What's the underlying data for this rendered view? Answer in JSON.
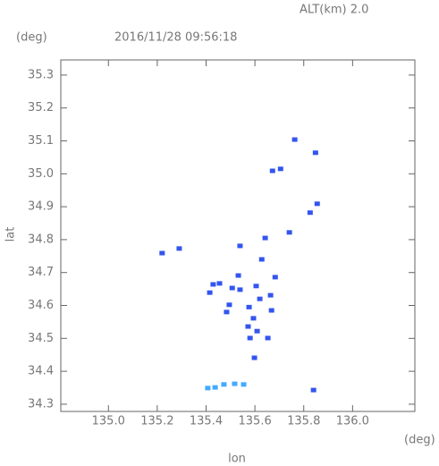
{
  "chart_data": {
    "type": "scatter",
    "title": "2016/11/28 09:56:18",
    "annotation": "ALT(km) 2.0",
    "y_unit": "(deg)",
    "x_unit": "(deg)",
    "x_label": "lon",
    "y_label": "lat",
    "xlim": [
      134.805,
      136.255
    ],
    "ylim": [
      34.278,
      35.346
    ],
    "xticks": [
      {
        "value": 135,
        "label": "135.0"
      },
      135.2,
      135.4,
      135.6,
      135.8,
      {
        "value": 136,
        "label": "136.0"
      }
    ],
    "yticks": [
      34.3,
      34.4,
      34.5,
      34.6,
      34.7,
      34.8,
      34.9,
      {
        "value": 35,
        "label": "35.0"
      },
      35.1,
      35.2,
      35.3
    ],
    "series": [
      {
        "color": "#3355ee",
        "x": [
          135.763,
          135.848,
          135.672,
          135.705,
          135.826,
          135.855,
          135.642,
          135.741,
          135.22,
          135.29,
          135.539,
          135.628,
          135.683,
          135.532,
          135.429,
          135.455,
          135.415,
          135.507,
          135.539,
          135.605,
          135.664,
          135.62,
          135.576,
          135.668,
          135.484,
          135.495,
          135.594,
          135.572,
          135.609,
          135.58,
          135.653,
          135.598,
          135.84
        ],
        "values": [
          35.104,
          35.064,
          35.009,
          35.015,
          34.882,
          34.909,
          34.805,
          34.822,
          34.759,
          34.773,
          34.781,
          34.74,
          34.686,
          34.691,
          34.664,
          34.667,
          34.639,
          34.653,
          34.648,
          34.659,
          34.631,
          34.62,
          34.595,
          34.585,
          34.58,
          34.602,
          34.561,
          34.536,
          34.522,
          34.501,
          34.501,
          34.441,
          34.343
        ]
      },
      {
        "color": "#44aaff",
        "x": [
          135.407,
          135.437,
          135.473,
          135.517,
          135.554
        ],
        "values": [
          34.349,
          34.351,
          34.36,
          34.362,
          34.36
        ]
      }
    ]
  }
}
